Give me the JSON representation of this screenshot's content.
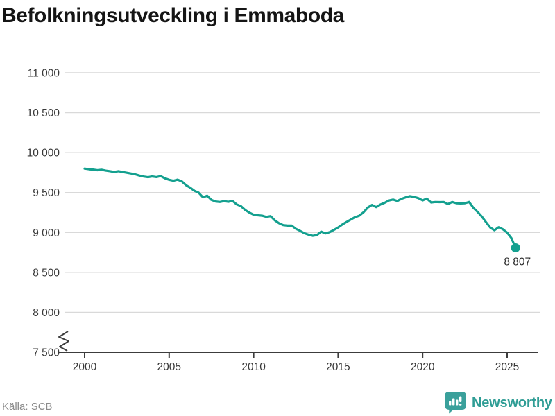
{
  "header": {
    "title": "Befolkningsutveckling i Emmaboda"
  },
  "footer": {
    "source": "Källa: SCB",
    "brand": "Newsworthy"
  },
  "colors": {
    "line": "#14a08f",
    "grid": "#d9d9d9",
    "axis": "#3c3c3c",
    "tick_label": "#383838",
    "title": "#151515",
    "annotation": "#2b2b2b",
    "source": "#8b8b8b",
    "brand": "#2f9d95",
    "logo_bubble": "#3aa09b",
    "logo_glyph": "#ffffff"
  },
  "chart_data": {
    "type": "line",
    "title": "Befolkningsutveckling i Emmaboda",
    "xlabel": "",
    "ylabel": "",
    "grid": "horizontal",
    "legend": "none",
    "axis_break_at_bottom": true,
    "ylim": [
      7500,
      11000
    ],
    "xlim": [
      1998.8,
      2026.9
    ],
    "y_ticks": [
      {
        "label": "11 000",
        "value": 11000
      },
      {
        "label": "10 500",
        "value": 10500
      },
      {
        "label": "10 000",
        "value": 10000
      },
      {
        "label": "9 500",
        "value": 9500
      },
      {
        "label": "9 000",
        "value": 9000
      },
      {
        "label": "8 500",
        "value": 8500
      },
      {
        "label": "8 000",
        "value": 8000
      },
      {
        "label": "7 500",
        "value": 7500
      }
    ],
    "x_ticks": [
      {
        "label": "2000",
        "year": 2000
      },
      {
        "label": "2005",
        "year": 2005
      },
      {
        "label": "2010",
        "year": 2010
      },
      {
        "label": "2015",
        "year": 2015
      },
      {
        "label": "2020",
        "year": 2020
      },
      {
        "label": "2025",
        "year": 2025
      }
    ],
    "end_annotation": {
      "label": "8 807",
      "year": 2025.5,
      "value": 8807
    },
    "series": [
      {
        "name": "Befolkning i Emmaboda",
        "points": [
          [
            2000.0,
            9800
          ],
          [
            2000.25,
            9792
          ],
          [
            2000.5,
            9788
          ],
          [
            2000.75,
            9780
          ],
          [
            2001.0,
            9786
          ],
          [
            2001.25,
            9775
          ],
          [
            2001.5,
            9768
          ],
          [
            2001.75,
            9758
          ],
          [
            2002.0,
            9768
          ],
          [
            2002.25,
            9757
          ],
          [
            2002.5,
            9748
          ],
          [
            2002.75,
            9738
          ],
          [
            2003.0,
            9728
          ],
          [
            2003.25,
            9712
          ],
          [
            2003.5,
            9700
          ],
          [
            2003.75,
            9692
          ],
          [
            2004.0,
            9702
          ],
          [
            2004.25,
            9694
          ],
          [
            2004.5,
            9706
          ],
          [
            2004.75,
            9678
          ],
          [
            2005.0,
            9660
          ],
          [
            2005.25,
            9648
          ],
          [
            2005.5,
            9662
          ],
          [
            2005.75,
            9640
          ],
          [
            2006.0,
            9592
          ],
          [
            2006.25,
            9560
          ],
          [
            2006.5,
            9522
          ],
          [
            2006.75,
            9498
          ],
          [
            2007.0,
            9440
          ],
          [
            2007.25,
            9460
          ],
          [
            2007.5,
            9408
          ],
          [
            2007.75,
            9388
          ],
          [
            2008.0,
            9382
          ],
          [
            2008.25,
            9392
          ],
          [
            2008.5,
            9384
          ],
          [
            2008.75,
            9396
          ],
          [
            2009.0,
            9352
          ],
          [
            2009.25,
            9330
          ],
          [
            2009.5,
            9282
          ],
          [
            2009.75,
            9248
          ],
          [
            2010.0,
            9222
          ],
          [
            2010.25,
            9215
          ],
          [
            2010.5,
            9210
          ],
          [
            2010.75,
            9195
          ],
          [
            2011.0,
            9205
          ],
          [
            2011.25,
            9152
          ],
          [
            2011.5,
            9116
          ],
          [
            2011.75,
            9092
          ],
          [
            2012.0,
            9086
          ],
          [
            2012.25,
            9086
          ],
          [
            2012.5,
            9046
          ],
          [
            2012.75,
            9020
          ],
          [
            2013.0,
            8990
          ],
          [
            2013.25,
            8972
          ],
          [
            2013.5,
            8958
          ],
          [
            2013.75,
            8968
          ],
          [
            2014.0,
            9010
          ],
          [
            2014.25,
            8988
          ],
          [
            2014.5,
            9004
          ],
          [
            2014.75,
            9032
          ],
          [
            2015.0,
            9062
          ],
          [
            2015.25,
            9100
          ],
          [
            2015.5,
            9132
          ],
          [
            2015.75,
            9162
          ],
          [
            2016.0,
            9192
          ],
          [
            2016.25,
            9210
          ],
          [
            2016.5,
            9252
          ],
          [
            2016.75,
            9312
          ],
          [
            2017.0,
            9345
          ],
          [
            2017.25,
            9318
          ],
          [
            2017.5,
            9350
          ],
          [
            2017.75,
            9372
          ],
          [
            2018.0,
            9400
          ],
          [
            2018.25,
            9412
          ],
          [
            2018.5,
            9394
          ],
          [
            2018.75,
            9422
          ],
          [
            2019.0,
            9440
          ],
          [
            2019.25,
            9455
          ],
          [
            2019.5,
            9445
          ],
          [
            2019.75,
            9430
          ],
          [
            2020.0,
            9402
          ],
          [
            2020.25,
            9425
          ],
          [
            2020.5,
            9376
          ],
          [
            2020.75,
            9382
          ],
          [
            2021.0,
            9380
          ],
          [
            2021.25,
            9382
          ],
          [
            2021.5,
            9356
          ],
          [
            2021.75,
            9382
          ],
          [
            2022.0,
            9366
          ],
          [
            2022.25,
            9364
          ],
          [
            2022.5,
            9366
          ],
          [
            2022.75,
            9382
          ],
          [
            2023.0,
            9310
          ],
          [
            2023.25,
            9258
          ],
          [
            2023.5,
            9200
          ],
          [
            2023.75,
            9130
          ],
          [
            2024.0,
            9062
          ],
          [
            2024.25,
            9028
          ],
          [
            2024.5,
            9066
          ],
          [
            2024.75,
            9040
          ],
          [
            2025.0,
            8998
          ],
          [
            2025.25,
            8930
          ],
          [
            2025.5,
            8807
          ]
        ]
      }
    ]
  }
}
